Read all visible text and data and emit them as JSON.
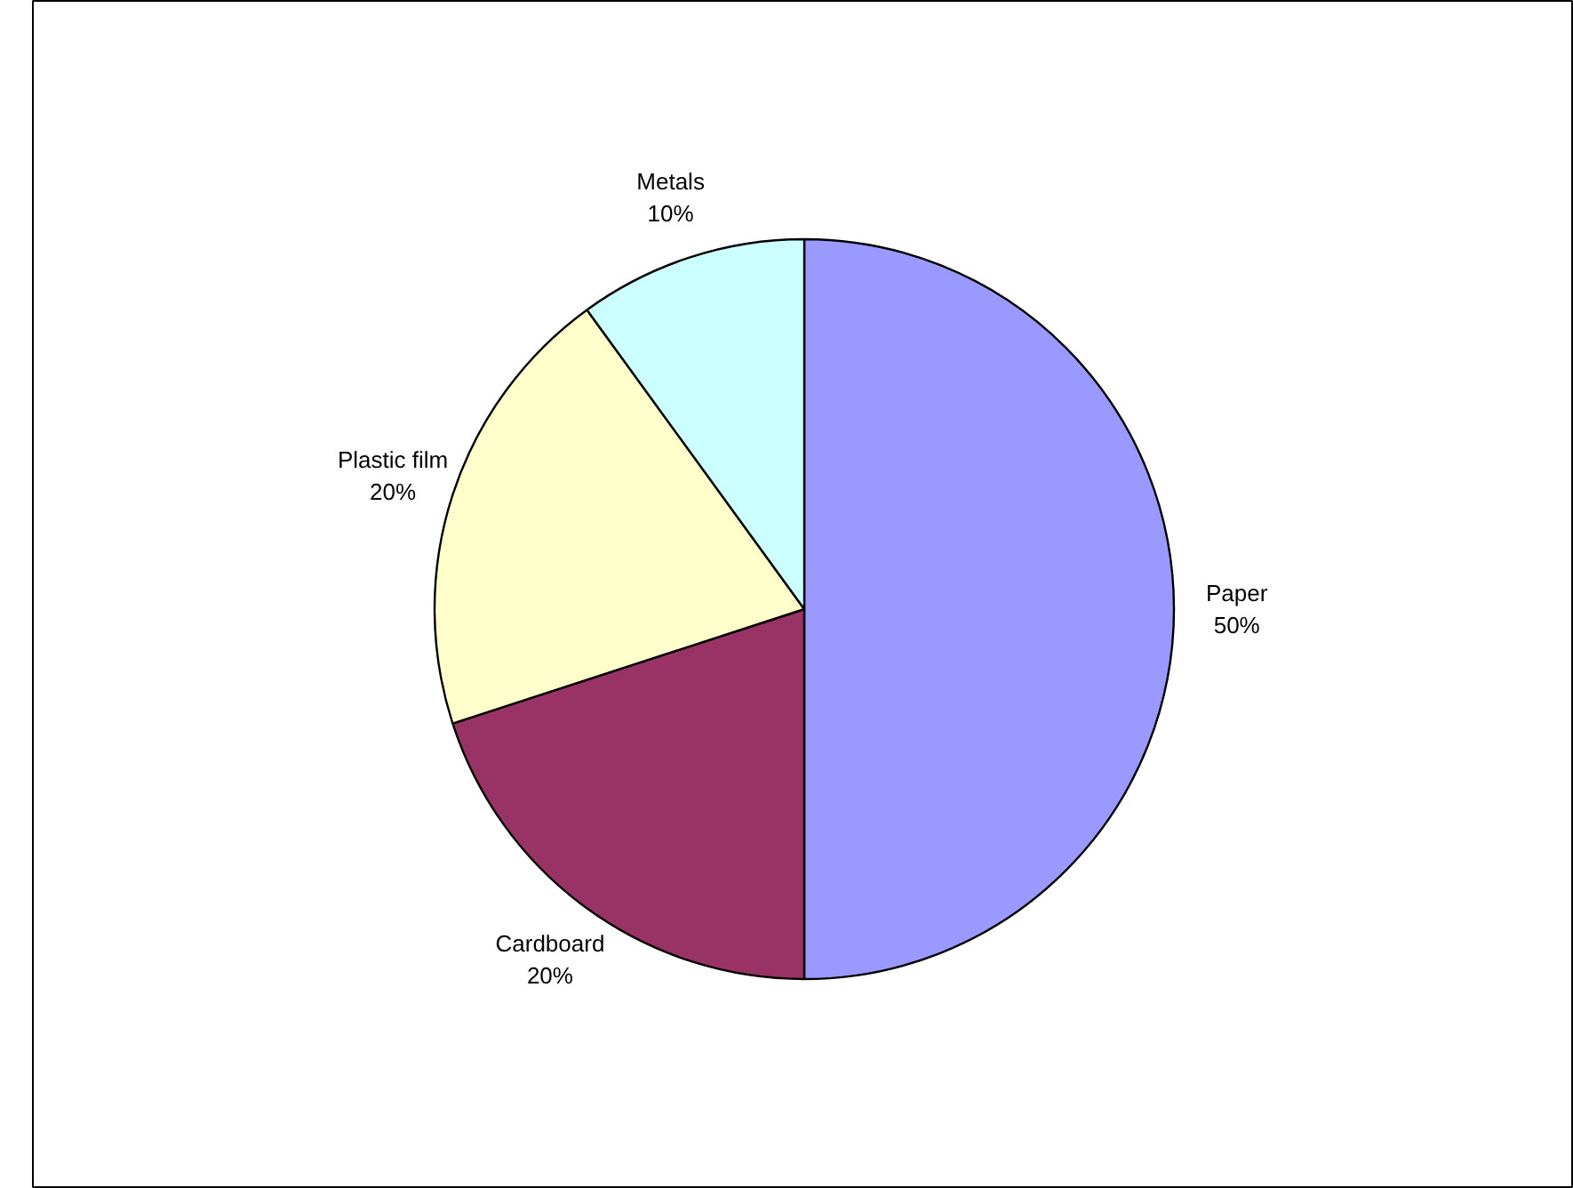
{
  "chart_data": {
    "type": "pie",
    "categories": [
      "Paper",
      "Cardboard",
      "Plastic film",
      "Metals"
    ],
    "values": [
      50,
      20,
      20,
      10
    ],
    "colors": [
      "#9999ff",
      "#993366",
      "#ffffcc",
      "#ccffff"
    ],
    "value_labels": [
      "50%",
      "20%",
      "20%",
      "10%"
    ]
  }
}
